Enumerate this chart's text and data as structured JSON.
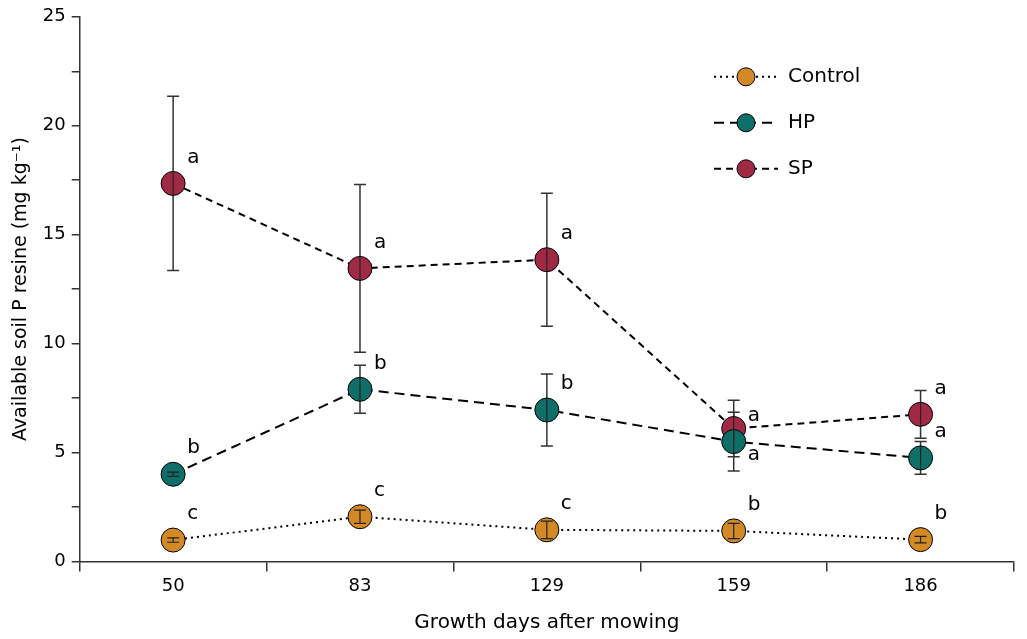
{
  "chart_data": {
    "type": "line",
    "xlabel": "Growth days after mowing",
    "ylabel": "Available soil P resine (mg kg⁻¹)",
    "categories": [
      "50",
      "83",
      "129",
      "159",
      "186"
    ],
    "ylim": [
      0,
      25
    ],
    "yticks": [
      0,
      {
        "value": 2.5,
        "label": null
      },
      5,
      {
        "value": 7.5,
        "label": null
      },
      10,
      {
        "value": 12.5,
        "label": null
      },
      15,
      {
        "value": 17.5,
        "label": null
      },
      20,
      {
        "value": 22.5,
        "label": null
      },
      25
    ],
    "grid": false,
    "legend": "top right",
    "marker": "circle",
    "series": [
      {
        "name": "Control",
        "color": "#d38a26",
        "line_style": "dotted",
        "values": [
          0.98,
          2.05,
          1.45,
          1.4,
          1.0
        ],
        "errors": [
          0.1,
          0.3,
          0.4,
          0.35,
          0.15
        ]
      },
      {
        "name": "HP",
        "color": "#0e6e68",
        "line_style": "dashed",
        "values": [
          4.0,
          7.9,
          6.95,
          5.5,
          4.75
        ],
        "errors": [
          0.1,
          1.1,
          1.65,
          1.35,
          0.75
        ]
      },
      {
        "name": "SP",
        "color": "#a02a44",
        "line_style": "dashed",
        "values": [
          17.35,
          13.45,
          13.85,
          6.1,
          6.75
        ],
        "errors": [
          4.0,
          3.85,
          3.05,
          1.3,
          1.1
        ]
      }
    ],
    "annotations": [
      {
        "text": "c",
        "x": "50",
        "y": 0.98
      },
      {
        "text": "c",
        "x": "83",
        "y": 2.05
      },
      {
        "text": "c",
        "x": "129",
        "y": 1.45
      },
      {
        "text": "b",
        "x": "159",
        "y": 1.4
      },
      {
        "text": "b",
        "x": "186",
        "y": 1.0
      },
      {
        "text": "b",
        "x": "50",
        "y": 4.0
      },
      {
        "text": "b",
        "x": "83",
        "y": 7.9
      },
      {
        "text": "b",
        "x": "129",
        "y": 6.95
      },
      {
        "text": "a",
        "x": "159",
        "y": 5.5
      },
      {
        "text": "a",
        "x": "186",
        "y": 4.75
      },
      {
        "text": "a",
        "x": "50",
        "y": 17.35
      },
      {
        "text": "a",
        "x": "83",
        "y": 13.45
      },
      {
        "text": "a",
        "x": "129",
        "y": 13.85
      },
      {
        "text": "a",
        "x": "159",
        "y": 6.1
      },
      {
        "text": "a",
        "x": "186",
        "y": 6.75
      }
    ]
  }
}
